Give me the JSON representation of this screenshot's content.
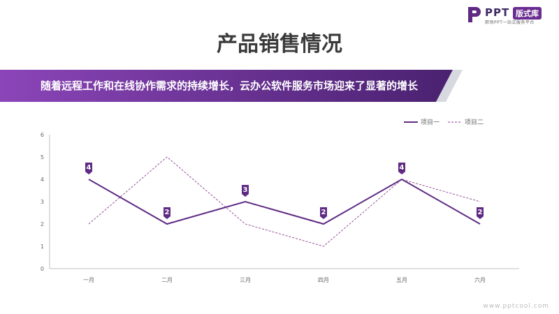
{
  "logo": {
    "brand": "PPT",
    "badge": "版式库",
    "tagline": "职场PPT一站式服务平台"
  },
  "page": {
    "title": "产品销售情况",
    "banner_text": "随着远程工作和在线协作需求的持续增长，云办公软件服务市场迎来了显著的增长",
    "footer_url": "www.pptcool.com"
  },
  "colors": {
    "accent": "#5e2a84",
    "banner_start": "#7b3aa6",
    "banner_end": "#4a2170",
    "series1": "#5e2a84",
    "series2": "#8a3f8f"
  },
  "chart_data": {
    "type": "line",
    "categories": [
      "一月",
      "二月",
      "三月",
      "四月",
      "五月",
      "六月"
    ],
    "series": [
      {
        "name": "项目一",
        "values": [
          4,
          2,
          3,
          2,
          4,
          2
        ],
        "style": "solid",
        "data_labels": true
      },
      {
        "name": "项目二",
        "values": [
          2,
          5,
          2,
          1,
          4,
          3
        ],
        "style": "dashed",
        "data_labels": false
      }
    ],
    "ylim": [
      0,
      6
    ],
    "yticks": [
      0,
      1,
      2,
      3,
      4,
      5,
      6
    ],
    "legend": "top-right",
    "grid": false
  }
}
